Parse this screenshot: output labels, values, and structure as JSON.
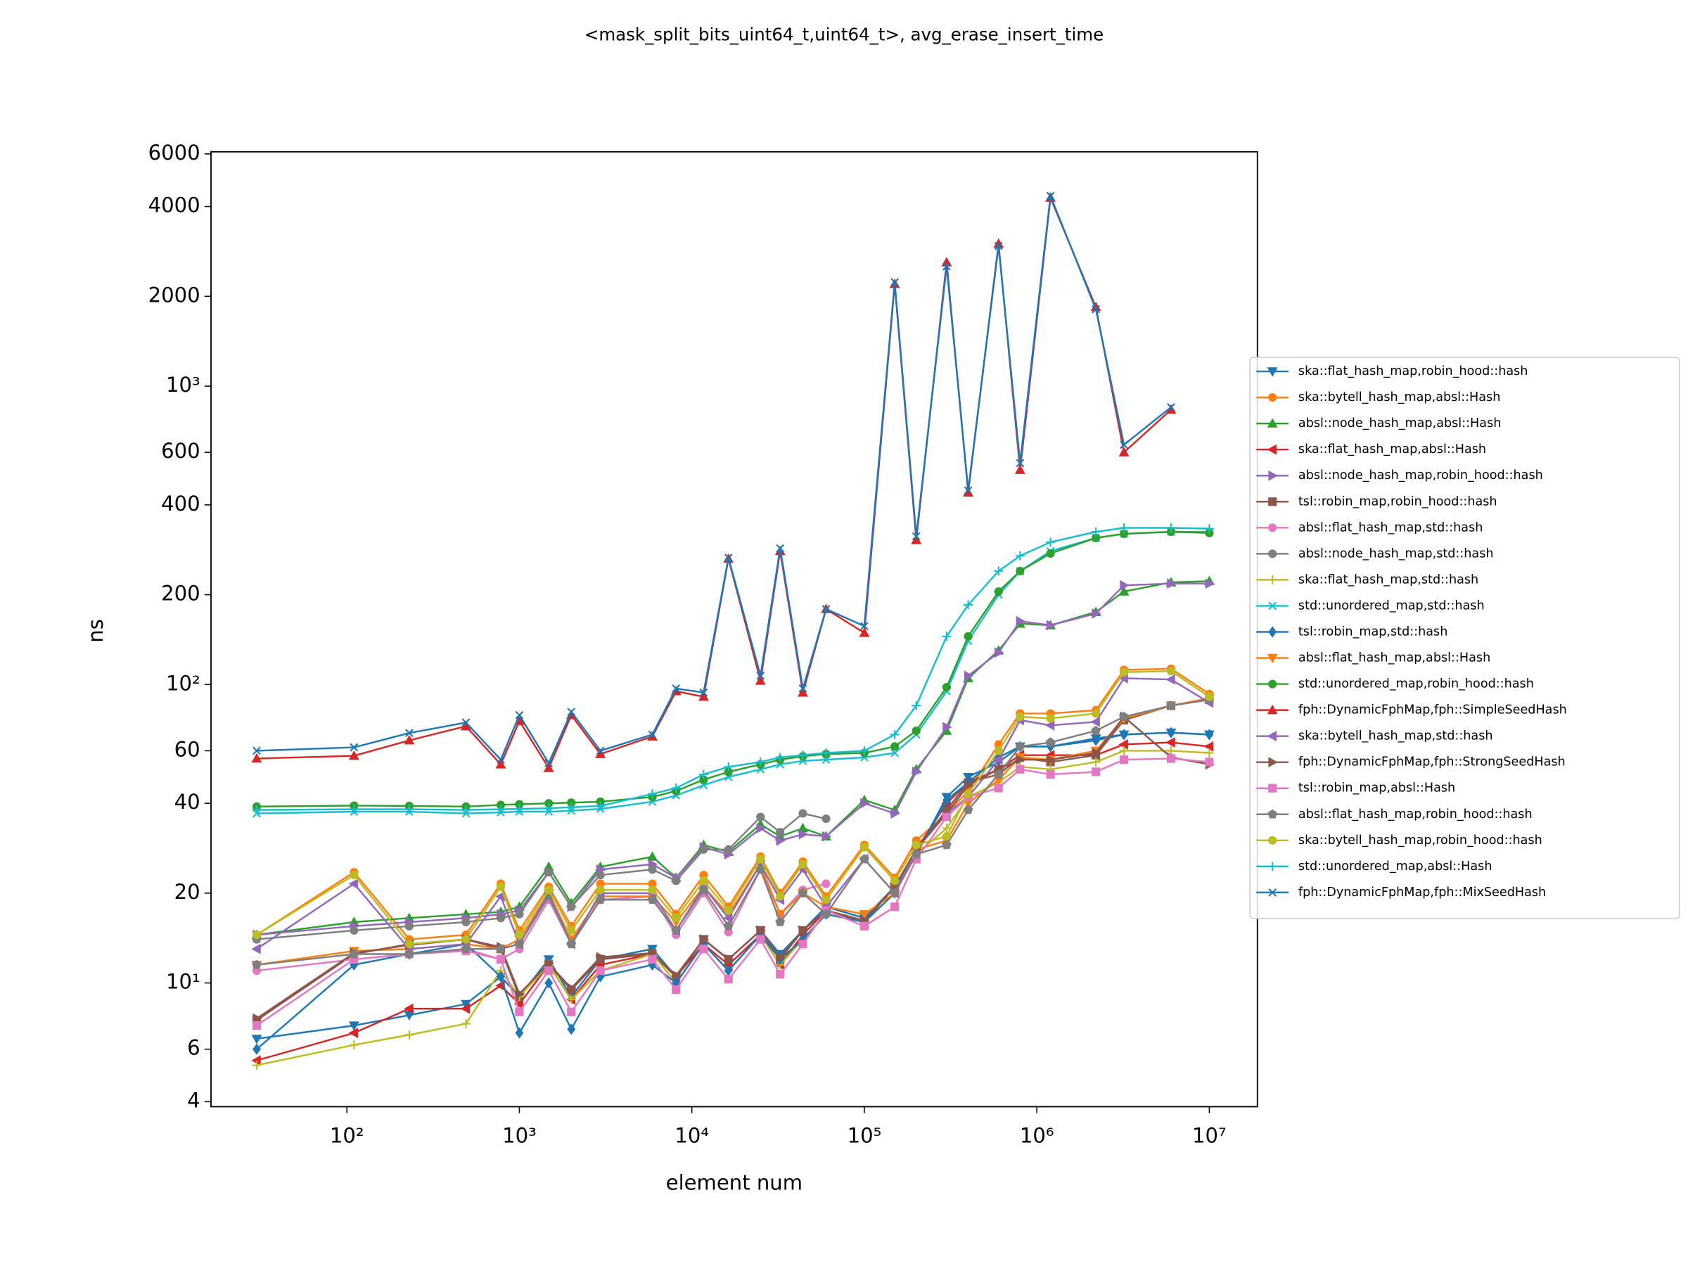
{
  "chart_data": {
    "type": "line",
    "title": "<mask_split_bits_uint64_t,uint64_t>, avg_erase_insert_time",
    "x_label": "element num",
    "y_label": "ns",
    "x_scale": "log",
    "y_scale": "log",
    "legend": "right",
    "xlim": [
      16.3,
      19000000
    ],
    "ylim": [
      3.85,
      6100
    ],
    "xticks": [
      {
        "value": 100,
        "label": "10²"
      },
      {
        "value": 1000,
        "label": "10³"
      },
      {
        "value": 10000,
        "label": "10⁴"
      },
      {
        "value": 100000,
        "label": "10⁵"
      },
      {
        "value": 1000000,
        "label": "10⁶"
      },
      {
        "value": 10000000,
        "label": "10⁷"
      }
    ],
    "yticks": [
      4,
      6,
      {
        "value": 10,
        "label": "10¹"
      },
      20,
      40,
      60,
      {
        "value": 100,
        "label": "10²"
      },
      200,
      400,
      600,
      {
        "value": 1000,
        "label": "10³"
      },
      2000,
      4000,
      6000
    ],
    "x": [
      30,
      110,
      230,
      490,
      780,
      1000,
      1480,
      2000,
      2950,
      5900,
      8100,
      11700,
      16300,
      25000,
      32500,
      44000,
      60000,
      100000,
      150000,
      200000,
      300000,
      400000,
      600000,
      800000,
      1200000,
      2200000,
      3200000,
      6000000,
      10000000
    ],
    "series": [
      {
        "name": "ska::flat_hash_map,robin_hood::hash",
        "color": "#1f77b4",
        "marker": "v",
        "values": [
          6.5,
          7.2,
          7.8,
          8.5,
          10.5,
          9,
          12,
          9,
          12,
          13,
          10.5,
          14,
          12,
          15,
          12.5,
          15,
          18,
          16.5,
          21,
          27,
          42,
          49,
          55,
          62,
          62,
          66,
          68,
          69,
          68
        ]
      },
      {
        "name": "ska::bytell_hash_map,absl::Hash",
        "color": "#ff7f0e",
        "marker": "o",
        "values": [
          14.5,
          23.5,
          14,
          14.5,
          21.5,
          15,
          21,
          15.5,
          21.5,
          21.5,
          17,
          23,
          18,
          26.5,
          20,
          25.5,
          19.5,
          29,
          22.5,
          30,
          37,
          44,
          63,
          80,
          80,
          82,
          112,
          113,
          93
        ]
      },
      {
        "name": "absl::node_hash_map,absl::Hash",
        "color": "#2ca02c",
        "marker": "^",
        "values": [
          14.5,
          16,
          16.5,
          17,
          17.3,
          18,
          24.5,
          18.5,
          24.5,
          26.5,
          22.5,
          29,
          27.5,
          34,
          31,
          33,
          31,
          41,
          38,
          52,
          70,
          105,
          130,
          160,
          158,
          175,
          205,
          220,
          222
        ]
      },
      {
        "name": "ska::flat_hash_map,absl::Hash",
        "color": "#d62728",
        "marker": "<",
        "values": [
          5.5,
          6.8,
          8.2,
          8.2,
          9.8,
          8.5,
          11.5,
          8.8,
          11.5,
          12.5,
          10.5,
          13.5,
          11.5,
          14.5,
          11.5,
          14.5,
          17.5,
          16,
          21,
          28,
          40,
          47,
          52,
          58,
          58,
          58,
          63,
          64,
          62
        ]
      },
      {
        "name": "absl::node_hash_map,robin_hood::hash",
        "color": "#9467bd",
        "marker": ">",
        "values": [
          14.5,
          15.5,
          16,
          16.5,
          17,
          17.5,
          23.5,
          18,
          24,
          25,
          22.5,
          28.5,
          27,
          33,
          30,
          31.5,
          31,
          40,
          37,
          51,
          72,
          107,
          128,
          163,
          158,
          173,
          215,
          218,
          218
        ]
      },
      {
        "name": "tsl::robin_map,robin_hood::hash",
        "color": "#8c564b",
        "marker": "s",
        "values": [
          7.5,
          12.5,
          13.5,
          14,
          13,
          9,
          11.5,
          9.5,
          12,
          12.5,
          10.5,
          14,
          12,
          15,
          12,
          15,
          17.5,
          16,
          21,
          28,
          38,
          47,
          50,
          57,
          55,
          58,
          76,
          85,
          89
        ]
      },
      {
        "name": "absl::flat_hash_map,std::hash",
        "color": "#e377c2",
        "marker": "o",
        "values": [
          11,
          12,
          12.5,
          13,
          12,
          13,
          19,
          13.5,
          19,
          19.5,
          14.5,
          20,
          14.8,
          24,
          17,
          20.5,
          21.5,
          null,
          null,
          null,
          null,
          null,
          null,
          null,
          null,
          null,
          null,
          null,
          null
        ]
      },
      {
        "name": "absl::node_hash_map,std::hash",
        "color": "#7f7f7f",
        "marker": "o",
        "values": [
          14,
          15,
          15.5,
          16,
          16.5,
          17,
          23.5,
          18,
          23,
          24,
          22,
          28,
          28,
          36,
          32,
          37,
          35.5,
          null,
          null,
          null,
          null,
          null,
          null,
          null,
          null,
          null,
          null,
          null,
          null
        ]
      },
      {
        "name": "ska::flat_hash_map,std::hash",
        "color": "#bcbd22",
        "marker": "+",
        "values": [
          5.3,
          6.2,
          6.7,
          7.3,
          11,
          9,
          11.5,
          8.8,
          11,
          12.5,
          10,
          13.5,
          11,
          14.5,
          11.5,
          14,
          17,
          16,
          20,
          27,
          33,
          42,
          47,
          53,
          52,
          55,
          60,
          60,
          59
        ]
      },
      {
        "name": "std::unordered_map,std::hash",
        "color": "#17becf",
        "marker": "x",
        "values": [
          37,
          37.5,
          37.5,
          37,
          37.3,
          37.5,
          37.5,
          37.8,
          38.3,
          40.5,
          42.5,
          46,
          49,
          52,
          54,
          55.5,
          56,
          57,
          59,
          68,
          95,
          140,
          200,
          240,
          280,
          310,
          320,
          325,
          325
        ]
      },
      {
        "name": "tsl::robin_map,std::hash",
        "color": "#1f77b4",
        "marker": "D",
        "values": [
          6,
          11.5,
          12.5,
          13.5,
          10.5,
          6.8,
          10,
          7,
          10.5,
          11.5,
          10,
          13.5,
          11,
          14.5,
          12,
          14,
          17,
          16,
          20,
          27,
          41,
          47,
          57,
          62,
          62,
          65,
          68,
          69,
          68
        ]
      },
      {
        "name": "absl::flat_hash_map,absl::Hash",
        "color": "#ff7f0e",
        "marker": "v",
        "values": [
          11.5,
          12.8,
          13,
          13.5,
          13,
          14,
          20,
          14,
          19.5,
          19.5,
          16,
          21,
          17,
          25,
          17,
          20,
          18,
          17,
          20,
          28,
          30,
          40,
          48,
          57,
          56,
          60,
          77,
          85,
          90
        ]
      },
      {
        "name": "std::unordered_map,robin_hood::hash",
        "color": "#2ca02c",
        "marker": "o",
        "values": [
          39,
          39.3,
          39.2,
          39,
          39.5,
          39.7,
          40,
          40.2,
          40.5,
          42,
          44,
          48,
          51,
          54,
          56,
          57.5,
          58.5,
          59,
          62,
          70,
          98,
          145,
          205,
          240,
          275,
          310,
          320,
          325,
          322
        ]
      },
      {
        "name": "fph::DynamicFphMap,fph::SimpleSeedHash",
        "color": "#d62728",
        "marker": "^",
        "values": [
          56.5,
          57.7,
          65,
          72.5,
          54,
          75.5,
          52.5,
          79,
          58.5,
          67,
          95,
          91,
          264,
          103,
          280,
          94,
          179,
          149,
          2200,
          305,
          2600,
          440,
          3000,
          524,
          4280,
          1840,
          600,
          834,
          null
        ]
      },
      {
        "name": "ska::bytell_hash_map,std::hash",
        "color": "#9467bd",
        "marker": "<",
        "values": [
          13,
          21.5,
          13,
          13.5,
          19.5,
          13.5,
          20,
          13.5,
          20,
          20,
          15,
          21,
          16.5,
          25,
          19,
          24,
          18,
          26,
          20,
          28,
          37,
          42,
          56,
          76,
          73,
          75,
          105,
          104,
          87
        ]
      },
      {
        "name": "fph::DynamicFphMap,fph::StrongSeedHash",
        "color": "#8c564b",
        "marker": ">",
        "values": [
          7.6,
          12.6,
          13.4,
          14,
          13.2,
          9.2,
          11.6,
          9.6,
          12.2,
          12.6,
          10.6,
          14,
          12,
          15,
          12.2,
          15,
          17.5,
          16.2,
          21,
          28,
          37,
          46,
          52,
          56,
          56,
          59,
          78,
          57,
          54
        ]
      },
      {
        "name": "tsl::robin_map,absl::Hash",
        "color": "#e377c2",
        "marker": "s",
        "values": [
          7.2,
          12,
          12.5,
          12.8,
          12,
          8,
          11,
          8,
          11,
          12,
          9.5,
          13,
          10.3,
          14,
          10.7,
          13.5,
          17.5,
          15.5,
          18,
          26,
          36,
          42,
          45,
          52,
          50,
          51,
          56,
          56.5,
          55
        ]
      },
      {
        "name": "absl::flat_hash_map,robin_hood::hash",
        "color": "#7f7f7f",
        "marker": "p",
        "values": [
          11.5,
          12.5,
          12.5,
          13,
          13,
          13.5,
          19.5,
          13.5,
          19,
          19,
          15,
          20.5,
          15.5,
          24,
          16,
          20,
          17,
          26,
          20,
          27,
          29,
          38,
          50,
          62,
          64,
          70,
          78,
          85,
          89
        ]
      },
      {
        "name": "ska::bytell_hash_map,robin_hood::hash",
        "color": "#bcbd22",
        "marker": "o",
        "values": [
          14.5,
          23,
          13.5,
          14,
          21,
          14.5,
          20.5,
          15,
          20.5,
          20.5,
          16.5,
          22,
          17.5,
          26,
          19.5,
          25,
          19,
          28.5,
          22,
          29,
          31,
          43,
          60,
          78,
          77,
          80,
          110,
          111,
          91
        ]
      },
      {
        "name": "std::unordered_map,absl::Hash",
        "color": "#17becf",
        "marker": "+",
        "values": [
          38,
          38.2,
          38.2,
          38,
          38.2,
          38.3,
          38.5,
          38.8,
          39.2,
          43,
          45,
          50,
          53,
          55,
          57,
          58,
          59,
          60,
          68,
          85,
          145,
          185,
          240,
          270,
          300,
          325,
          335,
          335,
          333
        ]
      },
      {
        "name": "fph::DynamicFphMap,fph::MixSeedHash",
        "color": "#1f77b4",
        "marker": "x",
        "values": [
          60,
          61.6,
          68.8,
          74.6,
          56,
          79,
          54.5,
          81,
          60,
          68,
          97,
          94,
          266,
          107,
          286,
          97,
          179,
          157,
          2230,
          314,
          2520,
          447,
          2950,
          552,
          4340,
          1810,
          636,
          850,
          null
        ]
      }
    ]
  }
}
